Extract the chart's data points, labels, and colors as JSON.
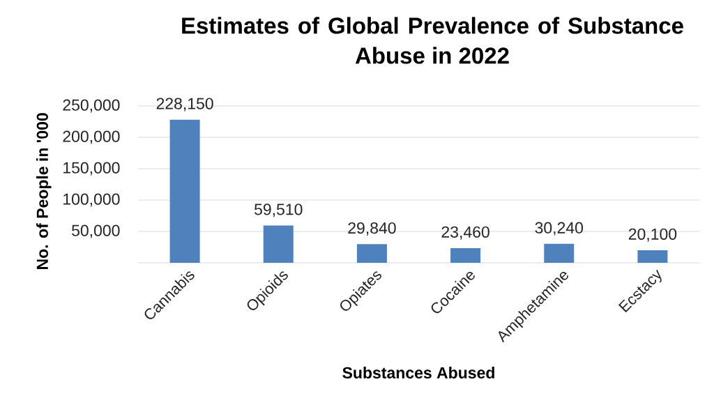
{
  "chart_data": {
    "type": "bar",
    "title": "Estimates of Global Prevalence of Substance Abuse in 2022",
    "xlabel": "Substances Abused",
    "ylabel": "No. of People in '000",
    "categories": [
      "Cannabis",
      "Opioids",
      "Opiates",
      "Cocaine",
      "Amphetamine",
      "Ecstacy"
    ],
    "values": [
      228150,
      59510,
      29840,
      23460,
      30240,
      20100
    ],
    "value_labels": [
      "228,150",
      "59,510",
      "29,840",
      "23,460",
      "30,240",
      "20,100"
    ],
    "color": "#4f81bd",
    "ylim": [
      0,
      250000
    ],
    "yticks": [
      {
        "value": 0,
        "label": null
      },
      {
        "value": 50000,
        "label": "50,000"
      },
      {
        "value": 100000,
        "label": "100,000"
      },
      {
        "value": 150000,
        "label": "150,000"
      },
      {
        "value": 200000,
        "label": "200,000"
      },
      {
        "value": 250000,
        "label": "250,000"
      }
    ],
    "grid": "y"
  }
}
